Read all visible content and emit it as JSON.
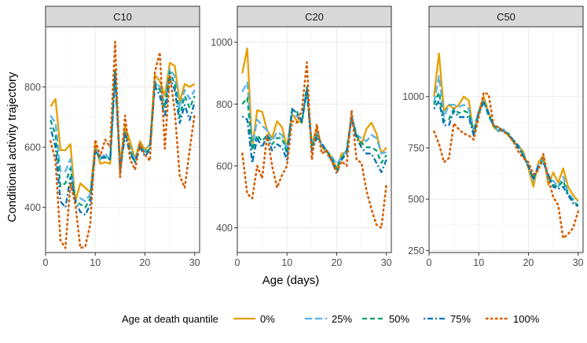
{
  "chart_data": {
    "type": "line",
    "xlabel": "Age (days)",
    "ylabel": "Conditional activity trajectory",
    "legend": {
      "title": "Age at death quantile",
      "position": "bottom"
    },
    "series_styles": [
      {
        "name": "0%",
        "color": "#E69F00",
        "dash": "solid"
      },
      {
        "name": "25%",
        "color": "#56B4E9",
        "dash": "longdash"
      },
      {
        "name": "50%",
        "color": "#009E73",
        "dash": "dashed"
      },
      {
        "name": "75%",
        "color": "#0072B2",
        "dash": "dotdash"
      },
      {
        "name": "100%",
        "color": "#D55E00",
        "dash": "dotted"
      }
    ],
    "x": [
      1,
      2,
      3,
      4,
      5,
      6,
      7,
      8,
      9,
      10,
      11,
      12,
      13,
      14,
      15,
      16,
      17,
      18,
      19,
      20,
      21,
      22,
      23,
      24,
      25,
      26,
      27,
      28,
      29,
      30
    ],
    "xticks": [
      0,
      10,
      20,
      30
    ],
    "xlim": [
      0,
      31
    ],
    "panels": [
      {
        "title": "C10",
        "ylim": [
          250,
          1000
        ],
        "yticks": [
          400,
          600,
          800
        ],
        "series": [
          {
            "name": "0%",
            "values": [
              735,
              760,
              590,
              590,
              610,
              420,
              480,
              465,
              450,
              610,
              545,
              550,
              545,
              855,
              545,
              670,
              620,
              560,
              620,
              590,
              610,
              840,
              820,
              770,
              880,
              870,
              750,
              810,
              800,
              810
            ]
          },
          {
            "name": "25%",
            "values": [
              705,
              680,
              520,
              520,
              560,
              420,
              430,
              420,
              445,
              595,
              560,
              580,
              555,
              845,
              535,
              650,
              600,
              555,
              610,
              585,
              610,
              820,
              800,
              740,
              860,
              835,
              730,
              790,
              760,
              790
            ]
          },
          {
            "name": "50%",
            "values": [
              690,
              640,
              470,
              480,
              530,
              420,
              410,
              400,
              430,
              590,
              560,
              570,
              560,
              860,
              525,
              650,
              590,
              550,
              605,
              580,
              595,
              815,
              790,
              730,
              850,
              810,
              700,
              770,
              730,
              770
            ]
          },
          {
            "name": "75%",
            "values": [
              665,
              600,
              420,
              400,
              500,
              420,
              385,
              375,
              410,
              585,
              565,
              565,
              560,
              840,
              520,
              640,
              580,
              550,
              600,
              570,
              590,
              805,
              770,
              700,
              830,
              790,
              680,
              740,
              690,
              750
            ]
          },
          {
            "name": "100%",
            "values": [
              620,
              555,
              290,
              265,
              480,
              410,
              265,
              270,
              345,
              625,
              570,
              625,
              600,
              950,
              500,
              705,
              560,
              525,
              610,
              575,
              555,
              850,
              915,
              595,
              840,
              720,
              505,
              465,
              590,
              710
            ]
          }
        ]
      },
      {
        "title": "C20",
        "ylim": [
          320,
          1050
        ],
        "yticks": [
          400,
          600,
          800,
          1000
        ],
        "series": [
          {
            "name": "0%",
            "values": [
              900,
              980,
              660,
              780,
              775,
              715,
              690,
              745,
              725,
              660,
              770,
              745,
              740,
              850,
              670,
              725,
              660,
              645,
              630,
              590,
              640,
              645,
              760,
              695,
              670,
              720,
              740,
              705,
              640,
              660
            ]
          },
          {
            "name": "25%",
            "values": [
              840,
              870,
              660,
              750,
              730,
              715,
              680,
              710,
              700,
              650,
              770,
              760,
              745,
              850,
              665,
              710,
              665,
              650,
              630,
              605,
              630,
              650,
              765,
              700,
              690,
              680,
              700,
              690,
              640,
              645
            ]
          },
          {
            "name": "50%",
            "values": [
              800,
              820,
              650,
              700,
              680,
              700,
              670,
              690,
              690,
              640,
              780,
              775,
              740,
              855,
              660,
              700,
              670,
              650,
              625,
              590,
              625,
              650,
              760,
              700,
              675,
              660,
              660,
              650,
              610,
              635
            ]
          },
          {
            "name": "75%",
            "values": [
              760,
              750,
              610,
              690,
              660,
              700,
              650,
              670,
              660,
              620,
              785,
              770,
              745,
              845,
              650,
              690,
              675,
              640,
              620,
              575,
              620,
              640,
              755,
              690,
              660,
              640,
              640,
              610,
              580,
              620
            ]
          },
          {
            "name": "100%",
            "values": [
              640,
              510,
              495,
              600,
              560,
              700,
              600,
              530,
              570,
              600,
              745,
              740,
              780,
              935,
              620,
              735,
              640,
              650,
              615,
              580,
              615,
              600,
              780,
              620,
              610,
              520,
              460,
              410,
              400,
              540
            ]
          }
        ]
      },
      {
        "title": "C50",
        "ylim": [
          240,
          1340
        ],
        "yticks": [
          250,
          500,
          750,
          1000
        ],
        "series": [
          {
            "name": "0%",
            "values": [
              1000,
              1210,
              930,
              960,
              940,
              960,
              1000,
              980,
              820,
              930,
              1000,
              920,
              850,
              830,
              840,
              810,
              780,
              760,
              730,
              650,
              560,
              680,
              710,
              570,
              630,
              580,
              650,
              560,
              520,
              490
            ]
          },
          {
            "name": "25%",
            "values": [
              970,
              1100,
              900,
              960,
              960,
              950,
              960,
              940,
              840,
              930,
              980,
              900,
              860,
              830,
              840,
              810,
              790,
              760,
              720,
              660,
              590,
              670,
              700,
              590,
              590,
              560,
              610,
              530,
              500,
              490
            ]
          },
          {
            "name": "50%",
            "values": [
              960,
              1020,
              880,
              890,
              940,
              920,
              930,
              920,
              820,
              920,
              980,
              910,
              860,
              840,
              830,
              820,
              780,
              760,
              710,
              660,
              600,
              660,
              690,
              610,
              570,
              560,
              590,
              520,
              490,
              470
            ]
          },
          {
            "name": "75%",
            "values": [
              940,
              980,
              860,
              860,
              930,
              900,
              900,
              900,
              810,
              920,
              970,
              920,
              860,
              850,
              830,
              810,
              790,
              750,
              710,
              660,
              600,
              660,
              680,
              620,
              560,
              550,
              560,
              520,
              480,
              465
            ]
          },
          {
            "name": "100%",
            "values": [
              830,
              770,
              680,
              700,
              870,
              840,
              820,
              810,
              790,
              900,
              1020,
              1010,
              860,
              850,
              830,
              810,
              780,
              730,
              700,
              680,
              620,
              640,
              720,
              600,
              510,
              470,
              310,
              330,
              360,
              440
            ]
          }
        ]
      }
    ]
  }
}
